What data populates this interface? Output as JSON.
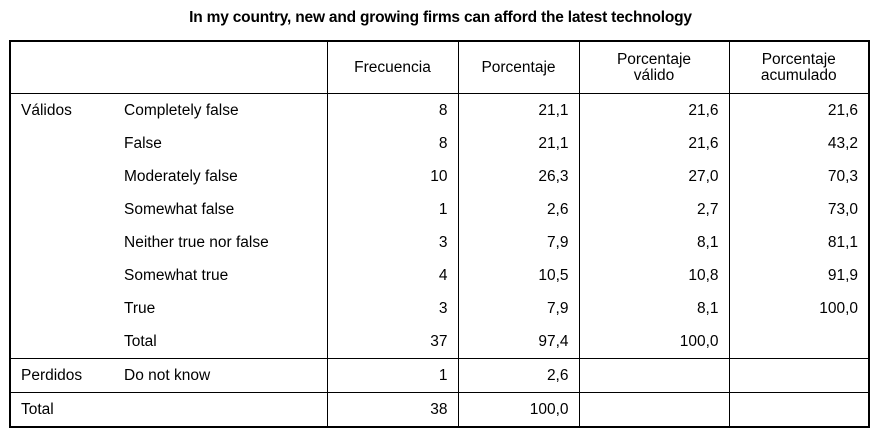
{
  "title": "In my country, new and growing firms can afford the latest technology",
  "headers": {
    "frequency": "Frecuencia",
    "percent": "Porcentaje",
    "valid_percent": "Porcentaje\nválido",
    "cumulative_percent": "Porcentaje\nacumulado"
  },
  "groups": {
    "valid": "Válidos",
    "missing": "Perdidos",
    "total": "Total"
  },
  "rows": [
    {
      "label": "Completely false",
      "freq": "8",
      "pct": "21,1",
      "valid": "21,6",
      "cum": "21,6"
    },
    {
      "label": "False",
      "freq": "8",
      "pct": "21,1",
      "valid": "21,6",
      "cum": "43,2"
    },
    {
      "label": "Moderately false",
      "freq": "10",
      "pct": "26,3",
      "valid": "27,0",
      "cum": "70,3"
    },
    {
      "label": "Somewhat false",
      "freq": "1",
      "pct": "2,6",
      "valid": "2,7",
      "cum": "73,0"
    },
    {
      "label": "Neither true nor false",
      "freq": "3",
      "pct": "7,9",
      "valid": "8,1",
      "cum": "81,1"
    },
    {
      "label": "Somewhat true",
      "freq": "4",
      "pct": "10,5",
      "valid": "10,8",
      "cum": "91,9"
    },
    {
      "label": "True",
      "freq": "3",
      "pct": "7,9",
      "valid": "8,1",
      "cum": "100,0"
    },
    {
      "label": "Total",
      "freq": "37",
      "pct": "97,4",
      "valid": "100,0",
      "cum": ""
    }
  ],
  "missing_row": {
    "label": "Do not know",
    "freq": "1",
    "pct": "2,6"
  },
  "total_row": {
    "freq": "38",
    "pct": "100,0"
  }
}
